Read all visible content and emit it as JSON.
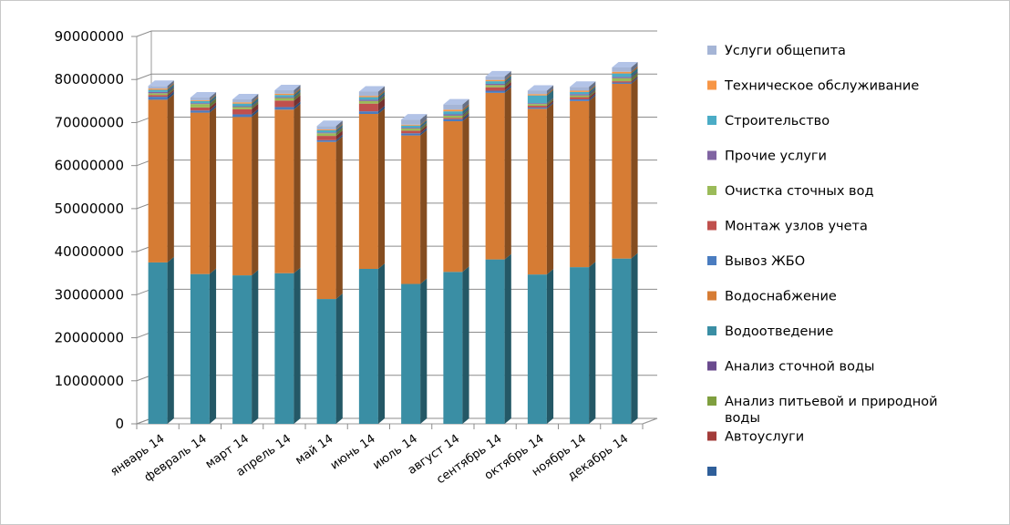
{
  "chart_data": {
    "type": "bar",
    "stacked": true,
    "style": "3d-column",
    "categories": [
      "январь 14",
      "февраль 14",
      "март 14",
      "апрель 14",
      "май 14",
      "июнь 14",
      "июль 14",
      "август 14",
      "сентябрь 14",
      "октябрь 14",
      "ноябрь 14",
      "декабрь 14"
    ],
    "ylim": [
      0,
      90000000
    ],
    "yticks": [
      0,
      10000000,
      20000000,
      30000000,
      40000000,
      50000000,
      60000000,
      70000000,
      80000000,
      90000000
    ],
    "ytick_labels": [
      "0",
      "10000000",
      "20000000",
      "30000000",
      "40000000",
      "50000000",
      "60000000",
      "70000000",
      "80000000",
      "90000000"
    ],
    "grid": true,
    "legend_position": "right",
    "series": [
      {
        "name": "",
        "color": "#2f5f9a",
        "values": [
          0,
          0,
          0,
          0,
          0,
          0,
          0,
          0,
          0,
          0,
          0,
          0
        ]
      },
      {
        "name": "Автоуслуги",
        "color": "#a33c3a",
        "values": [
          0,
          0,
          0,
          0,
          0,
          0,
          0,
          0,
          0,
          0,
          0,
          0
        ]
      },
      {
        "name": "Анализ питьевой и природной воды",
        "color": "#7f9f3f",
        "values": [
          0,
          0,
          0,
          0,
          0,
          0,
          0,
          0,
          0,
          0,
          0,
          0
        ]
      },
      {
        "name": "Анализ сточной воды",
        "color": "#6a4a8e",
        "values": [
          0,
          0,
          0,
          0,
          0,
          0,
          0,
          0,
          0,
          0,
          0,
          0
        ]
      },
      {
        "name": "Водоотведение",
        "color": "#3a8ea4",
        "values": [
          37500000,
          34800000,
          34500000,
          35000000,
          29000000,
          36000000,
          32500000,
          35300000,
          38200000,
          34700000,
          36400000,
          38400000
        ]
      },
      {
        "name": "Водоснабжение",
        "color": "#d67c34",
        "values": [
          37800000,
          37500000,
          36800000,
          38000000,
          36500000,
          36000000,
          34500000,
          35000000,
          38700000,
          38500000,
          38600000,
          40600000
        ]
      },
      {
        "name": "Вывоз ЖБО",
        "color": "#4a7cc0",
        "values": [
          700000,
          500000,
          600000,
          600000,
          400000,
          600000,
          500000,
          500000,
          500000,
          300000,
          400000,
          300000
        ]
      },
      {
        "name": "Монтаж узлов учета",
        "color": "#c0504d",
        "values": [
          400000,
          700000,
          1200000,
          1500000,
          1000000,
          1800000,
          600000,
          300000,
          800000,
          400000,
          500000,
          300000
        ]
      },
      {
        "name": "Очистка сточных вод",
        "color": "#9bbb59",
        "values": [
          400000,
          800000,
          500000,
          600000,
          600000,
          600000,
          500000,
          500000,
          500000,
          400000,
          400000,
          700000
        ]
      },
      {
        "name": "Прочие услуги",
        "color": "#8064a2",
        "values": [
          300000,
          200000,
          200000,
          200000,
          200000,
          300000,
          200000,
          300000,
          300000,
          200000,
          300000,
          300000
        ]
      },
      {
        "name": "Строительство",
        "color": "#4bacc6",
        "values": [
          500000,
          500000,
          600000,
          500000,
          500000,
          600000,
          500000,
          700000,
          600000,
          1800000,
          500000,
          800000
        ]
      },
      {
        "name": "Техническое обслуживание",
        "color": "#f79646",
        "values": [
          300000,
          200000,
          300000,
          300000,
          200000,
          300000,
          200000,
          400000,
          300000,
          300000,
          300000,
          400000
        ]
      },
      {
        "name": "Услуги общепита",
        "color": "#a5b5d6",
        "values": [
          600000,
          600000,
          700000,
          800000,
          800000,
          1000000,
          1200000,
          1200000,
          800000,
          800000,
          900000,
          1000000
        ]
      }
    ],
    "legend_order": [
      "Услуги общепита",
      "Техническое обслуживание",
      "Строительство",
      "Прочие услуги",
      "Очистка сточных вод",
      "Монтаж узлов учета",
      "Вывоз ЖБО",
      "Водоснабжение",
      "Водоотведение",
      "Анализ сточной воды",
      "Анализ питьевой и природной воды",
      "Автоуслуги",
      ""
    ]
  }
}
